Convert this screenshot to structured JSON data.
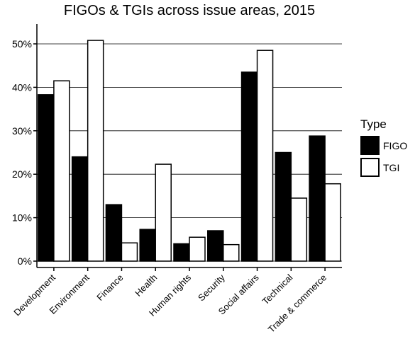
{
  "chart_data": {
    "type": "bar",
    "title": "FIGOs & TGIs across issue areas, 2015",
    "xlabel": "",
    "ylabel": "",
    "categories": [
      "Development",
      "Environment",
      "Finance",
      "Health",
      "Human rights",
      "Security",
      "Social affairs",
      "Technical",
      "Trade & commerce"
    ],
    "series": [
      {
        "name": "FIGO",
        "color": "#000000",
        "values": [
          38.3,
          24.0,
          13.0,
          7.3,
          4.0,
          7.0,
          43.5,
          25.0,
          28.8
        ]
      },
      {
        "name": "TGI",
        "color": "#ffffff",
        "values": [
          41.5,
          50.8,
          4.2,
          22.3,
          5.5,
          3.8,
          48.5,
          14.5,
          17.8
        ]
      }
    ],
    "ylim": [
      0,
      53
    ],
    "yticks": [
      0,
      10,
      20,
      30,
      40,
      50
    ],
    "ytick_labels": [
      "0%",
      "10%",
      "20%",
      "30%",
      "40%",
      "50%"
    ],
    "grid": true,
    "legend": {
      "title": "Type",
      "position": "right"
    }
  }
}
